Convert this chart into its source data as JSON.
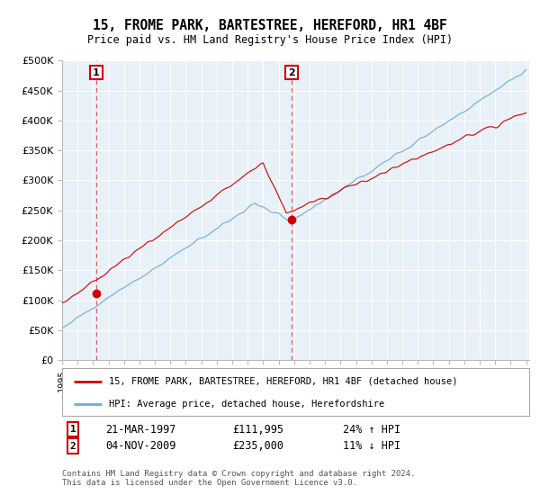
{
  "title": "15, FROME PARK, BARTESTREE, HEREFORD, HR1 4BF",
  "subtitle": "Price paid vs. HM Land Registry's House Price Index (HPI)",
  "legend_line1": "15, FROME PARK, BARTESTREE, HEREFORD, HR1 4BF (detached house)",
  "legend_line2": "HPI: Average price, detached house, Herefordshire",
  "transaction1_info": "21-MAR-1997",
  "transaction1_price": 111995,
  "transaction1_price_str": "£111,995",
  "transaction1_hpi": "24% ↑ HPI",
  "transaction1_year": 1997.21,
  "transaction2_info": "04-NOV-2009",
  "transaction2_price": 235000,
  "transaction2_price_str": "£235,000",
  "transaction2_hpi": "11% ↓ HPI",
  "transaction2_year": 2009.84,
  "ylabel_ticks": [
    "£0",
    "£50K",
    "£100K",
    "£150K",
    "£200K",
    "£250K",
    "£300K",
    "£350K",
    "£400K",
    "£450K",
    "£500K"
  ],
  "ylabel_values": [
    0,
    50000,
    100000,
    150000,
    200000,
    250000,
    300000,
    350000,
    400000,
    450000,
    500000
  ],
  "red_color": "#cc0000",
  "blue_color": "#6baed6",
  "plot_bg": "#e8f0f8",
  "grid_color": "#ffffff",
  "footer": "Contains HM Land Registry data © Crown copyright and database right 2024.\nThis data is licensed under the Open Government Licence v3.0."
}
